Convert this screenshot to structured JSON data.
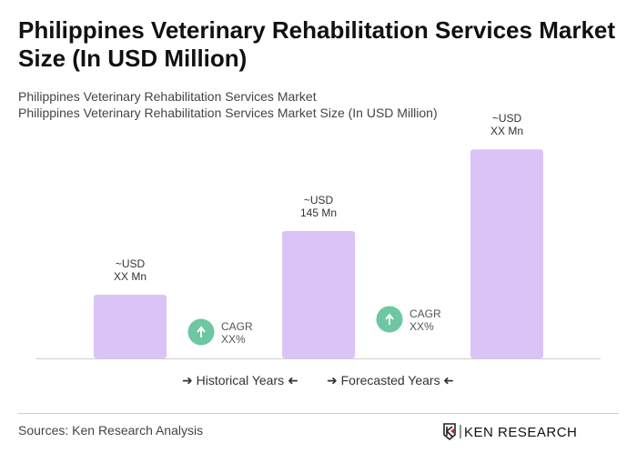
{
  "title": "Philippines Veterinary Rehabilitation Services Market Size (In USD Million)",
  "subtitle1": "Philippines Veterinary Rehabilitation Services Market",
  "subtitle2": "Philippines Veterinary Rehabilitation Services Market Size (In USD Million)",
  "chart_data": {
    "type": "bar",
    "values": [
      72.5,
      145,
      238
    ],
    "labels": [
      [
        "~USD",
        "XX Mn"
      ],
      [
        "~USD",
        "145 Mn"
      ],
      [
        "~USD",
        "XX Mn"
      ]
    ],
    "bar_color": "#dcc3f7",
    "cagr": [
      {
        "label": "CAGR",
        "value": "XX%"
      },
      {
        "label": "CAGR",
        "value": "XX%"
      }
    ],
    "cagr_color": "#6cc7a2",
    "grid": false
  },
  "legend": {
    "historical": "Historical Years",
    "forecasted": "Forecasted Years"
  },
  "source": "Sources: Ken Research Analysis",
  "logo_text": "KEN RESEARCH"
}
